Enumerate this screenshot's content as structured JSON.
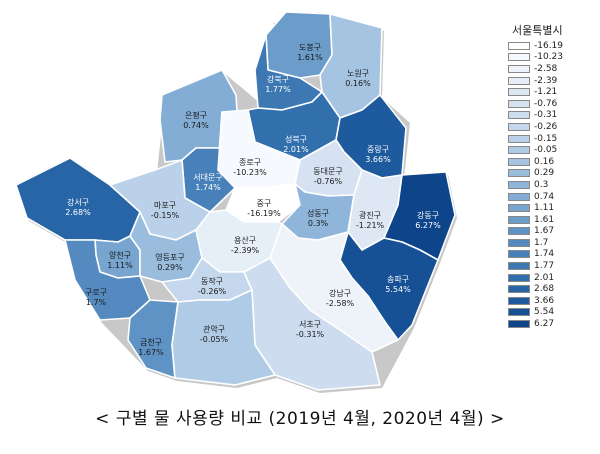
{
  "title": "",
  "caption": "< 구별 물 사용량 비교 (2019년 4월, 2020년 4월) >",
  "legend": {
    "title": "서울특별시",
    "entries": [
      {
        "label": "-16.19",
        "color": "#ffffff"
      },
      {
        "label": "-10.23",
        "color": "#f6f9fd"
      },
      {
        "label": "-2.58",
        "color": "#eef3fa"
      },
      {
        "label": "-2.39",
        "color": "#e6eef8"
      },
      {
        "label": "-1.21",
        "color": "#dee8f5"
      },
      {
        "label": "-0.76",
        "color": "#d6e2f2"
      },
      {
        "label": "-0.31",
        "color": "#cddcef"
      },
      {
        "label": "-0.26",
        "color": "#c4d7ec"
      },
      {
        "label": "-0.15",
        "color": "#bad1e9"
      },
      {
        "label": "-0.05",
        "color": "#b0cbe6"
      },
      {
        "label": "0.16",
        "color": "#a5c4e2"
      },
      {
        "label": "0.29",
        "color": "#9abdde"
      },
      {
        "label": "0.3",
        "color": "#8fb5da"
      },
      {
        "label": "0.74",
        "color": "#84add5"
      },
      {
        "label": "1.11",
        "color": "#78a5d0"
      },
      {
        "label": "1.61",
        "color": "#6c9cca"
      },
      {
        "label": "1.67",
        "color": "#6093c5"
      },
      {
        "label": "1.7",
        "color": "#548abf"
      },
      {
        "label": "1.74",
        "color": "#4881b9"
      },
      {
        "label": "1.77",
        "color": "#3d78b3"
      },
      {
        "label": "2.01",
        "color": "#326fad"
      },
      {
        "label": "2.68",
        "color": "#2765a6"
      },
      {
        "label": "3.66",
        "color": "#1e5b9e"
      },
      {
        "label": "5.54",
        "color": "#165095"
      },
      {
        "label": "6.27",
        "color": "#0e448a"
      }
    ]
  },
  "districts": [
    {
      "name": "도봉구",
      "value": "1.61%",
      "color": "#6c9cca"
    },
    {
      "name": "노원구",
      "value": "0.16%",
      "color": "#a5c4e2"
    },
    {
      "name": "강북구",
      "value": "1.77%",
      "color": "#3d78b3"
    },
    {
      "name": "은평구",
      "value": "0.74%",
      "color": "#84add5"
    },
    {
      "name": "성북구",
      "value": "2.01%",
      "color": "#326fad"
    },
    {
      "name": "중랑구",
      "value": "3.66%",
      "color": "#1e5b9e"
    },
    {
      "name": "종로구",
      "value": "-10.23%",
      "color": "#f6f9fd"
    },
    {
      "name": "동대문구",
      "value": "-0.76%",
      "color": "#d6e2f2"
    },
    {
      "name": "서대문구",
      "value": "1.74%",
      "color": "#4881b9"
    },
    {
      "name": "강서구",
      "value": "2.68%",
      "color": "#2765a6"
    },
    {
      "name": "마포구",
      "value": "-0.15%",
      "color": "#bad1e9"
    },
    {
      "name": "중구",
      "value": "-16.19%",
      "color": "#ffffff"
    },
    {
      "name": "성동구",
      "value": "0.3%",
      "color": "#8fb5da"
    },
    {
      "name": "광진구",
      "value": "-1.21%",
      "color": "#dee8f5"
    },
    {
      "name": "강동구",
      "value": "6.27%",
      "color": "#0e448a"
    },
    {
      "name": "양천구",
      "value": "1.11%",
      "color": "#78a5d0"
    },
    {
      "name": "영등포구",
      "value": "0.29%",
      "color": "#9abdde"
    },
    {
      "name": "용산구",
      "value": "-2.39%",
      "color": "#e6eef8"
    },
    {
      "name": "송파구",
      "value": "5.54%",
      "color": "#165095"
    },
    {
      "name": "구로구",
      "value": "1.7%",
      "color": "#548abf"
    },
    {
      "name": "동작구",
      "value": "-0.26%",
      "color": "#c4d7ec"
    },
    {
      "name": "강남구",
      "value": "-2.58%",
      "color": "#eef3fa"
    },
    {
      "name": "서초구",
      "value": "-0.31%",
      "color": "#cddcef"
    },
    {
      "name": "금천구",
      "value": "1.67%",
      "color": "#6093c5"
    },
    {
      "name": "관악구",
      "value": "-0.05%",
      "color": "#b0cbe6"
    }
  ]
}
